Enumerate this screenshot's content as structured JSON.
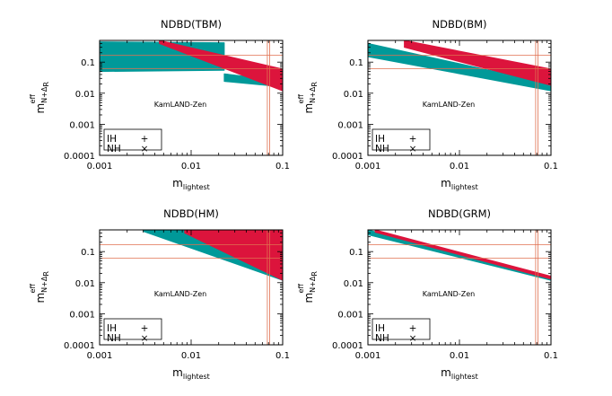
{
  "colors": {
    "ih": "#009999",
    "nh": "#dc143c",
    "ref_line": "#e07050",
    "axis": "#000000"
  },
  "chart_data": [
    {
      "type": "scatter",
      "title": "NDBD(TBM)",
      "xlabel_main": "m",
      "xlabel_sub": "lightest",
      "ylabel_main": "m",
      "ylabel_sub": "N+Δ",
      "ylabel_subsub": "R",
      "ylabel_sup": "eff",
      "xscale": "log",
      "yscale": "log",
      "xlim": [
        0.001,
        0.1
      ],
      "ylim": [
        0.0001,
        0.5
      ],
      "xticks": [
        "0.001",
        "0.01",
        "0.1"
      ],
      "yticks": [
        "0.1",
        "0.01",
        "0.001",
        "0.0001"
      ],
      "annotation": "KamLAND-Zen",
      "hlines": [
        0.061,
        0.165
      ],
      "vlines": [
        0.068,
        0.072
      ],
      "legend": [
        {
          "label": "IH",
          "marker": "+"
        },
        {
          "label": "NH",
          "marker": "×"
        }
      ],
      "series": [
        {
          "name": "IH",
          "bands": [
            {
              "x_range": [
                0.001,
                0.023
              ],
              "y_upper_start": 0.45,
              "y_upper_end": 0.42,
              "y_lower_start": 0.05,
              "y_lower_end": 0.055
            },
            {
              "x_range": [
                0.023,
                0.1
              ],
              "y_upper_start": 0.042,
              "y_upper_end": 0.025,
              "y_lower_start": 0.024,
              "y_lower_end": 0.016
            }
          ]
        },
        {
          "name": "NH",
          "bands": [
            {
              "x_range": [
                0.0045,
                0.1
              ],
              "y_upper_start": 0.5,
              "y_upper_end": 0.06,
              "y_lower_start": 0.4,
              "y_lower_end": 0.012
            }
          ]
        }
      ]
    },
    {
      "type": "scatter",
      "title": "NDBD(BM)",
      "xlabel_main": "m",
      "xlabel_sub": "lightest",
      "ylabel_main": "m",
      "ylabel_sub": "N+Δ",
      "ylabel_subsub": "R",
      "ylabel_sup": "eff",
      "xscale": "log",
      "yscale": "log",
      "xlim": [
        0.001,
        0.1
      ],
      "ylim": [
        0.0001,
        0.5
      ],
      "xticks": [
        "0.001",
        "0.01",
        "0.1"
      ],
      "yticks": [
        "0.1",
        "0.01",
        "0.001",
        "0.0001"
      ],
      "annotation": "KamLAND-Zen",
      "hlines": [
        0.061,
        0.165
      ],
      "vlines": [
        0.068,
        0.072
      ],
      "legend": [
        {
          "label": "IH",
          "marker": "+"
        },
        {
          "label": "NH",
          "marker": "×"
        }
      ],
      "series": [
        {
          "name": "IH",
          "bands": [
            {
              "x_range": [
                0.001,
                0.1
              ],
              "y_upper_start": 0.4,
              "y_upper_end": 0.02,
              "y_lower_start": 0.15,
              "y_lower_end": 0.012
            }
          ]
        },
        {
          "name": "NH",
          "bands": [
            {
              "x_range": [
                0.0025,
                0.1
              ],
              "y_upper_start": 0.5,
              "y_upper_end": 0.06,
              "y_lower_start": 0.3,
              "y_lower_end": 0.018
            }
          ]
        }
      ]
    },
    {
      "type": "scatter",
      "title": "NDBD(HM)",
      "xlabel_main": "m",
      "xlabel_sub": "lightest",
      "ylabel_main": "m",
      "ylabel_sub": "N+Δ",
      "ylabel_subsub": "R",
      "ylabel_sup": "eff",
      "xscale": "log",
      "yscale": "log",
      "xlim": [
        0.001,
        0.1
      ],
      "ylim": [
        0.0001,
        0.5
      ],
      "xticks": [
        "0.001",
        "0.01",
        "0.1"
      ],
      "yticks": [
        "0.1",
        "0.01",
        "0.001",
        "0.0001"
      ],
      "annotation": "KamLAND-Zen",
      "hlines": [
        0.061,
        0.165
      ],
      "vlines": [
        0.068,
        0.072
      ],
      "legend": [
        {
          "label": "IH",
          "marker": "+"
        },
        {
          "label": "NH",
          "marker": "×"
        }
      ],
      "series": [
        {
          "name": "IH",
          "bands": [
            {
              "x_range": [
                0.003,
                0.1
              ],
              "y_upper_start": 0.5,
              "y_upper_end": 0.45,
              "y_lower_start": 0.45,
              "y_lower_end": 0.012
            }
          ]
        },
        {
          "name": "NH",
          "bands": [
            {
              "x_range": [
                0.0085,
                0.1
              ],
              "y_upper_start": 0.5,
              "y_upper_end": 0.5,
              "y_lower_start": 0.4,
              "y_lower_end": 0.012
            }
          ]
        }
      ]
    },
    {
      "type": "scatter",
      "title": "NDBD(GRM)",
      "xlabel_main": "m",
      "xlabel_sub": "lightest",
      "ylabel_main": "m",
      "ylabel_sub": "N+Δ",
      "ylabel_subsub": "R",
      "ylabel_sup": "eff",
      "xscale": "log",
      "yscale": "log",
      "xlim": [
        0.001,
        0.1
      ],
      "ylim": [
        0.0001,
        0.5
      ],
      "xticks": [
        "0.001",
        "0.01",
        "0.1"
      ],
      "yticks": [
        "0.1",
        "0.01",
        "0.001",
        "0.0001"
      ],
      "annotation": "KamLAND-Zen",
      "hlines": [
        0.061,
        0.165
      ],
      "vlines": [
        0.068,
        0.072
      ],
      "legend": [
        {
          "label": "IH",
          "marker": "+"
        },
        {
          "label": "NH",
          "marker": "×"
        }
      ],
      "series": [
        {
          "name": "IH",
          "bands": [
            {
              "x_range": [
                0.001,
                0.1
              ],
              "y_upper_start": 0.5,
              "y_upper_end": 0.015,
              "y_lower_start": 0.35,
              "y_lower_end": 0.012
            }
          ]
        },
        {
          "name": "NH",
          "bands": [
            {
              "x_range": [
                0.0012,
                0.1
              ],
              "y_upper_start": 0.5,
              "y_upper_end": 0.016,
              "y_lower_start": 0.42,
              "y_lower_end": 0.013
            }
          ]
        }
      ]
    }
  ]
}
